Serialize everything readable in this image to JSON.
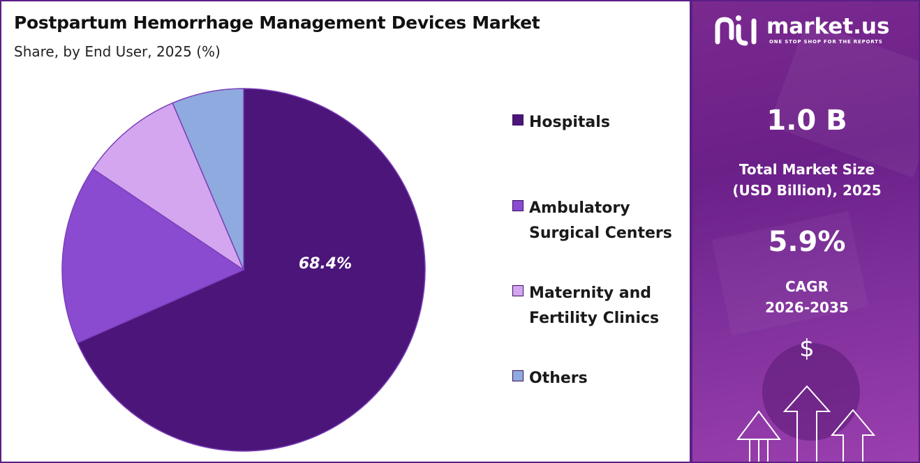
{
  "header": {
    "title": "Postpartum Hemorrhage Management Devices Market",
    "subtitle": "Share, by End User, 2025 (%)"
  },
  "chart_data": {
    "type": "pie",
    "title": "Postpartum Hemorrhage Management Devices Market",
    "subtitle": "Share, by End User, 2025 (%)",
    "legend_position": "right",
    "slices": [
      {
        "name": "Hospitals",
        "value": 68.4,
        "color": "#4b157a",
        "label": "68.4%"
      },
      {
        "name": "Ambulatory Surgical Centers",
        "value": 16.0,
        "color": "#8a4bd1",
        "label": ""
      },
      {
        "name": "Maternity and Fertility Clinics",
        "value": 9.2,
        "color": "#d3a6ef",
        "label": ""
      },
      {
        "name": "Others",
        "value": 6.4,
        "color": "#8faadf",
        "label": ""
      }
    ]
  },
  "legend": [
    {
      "label": "Hospitals",
      "color": "#4b157a"
    },
    {
      "label": "Ambulatory\nSurgical Centers",
      "color": "#8a4bd1"
    },
    {
      "label": "Maternity and\nFertility Clinics",
      "color": "#d3a6ef"
    },
    {
      "label": "Others",
      "color": "#8faadf"
    }
  ],
  "panel": {
    "logo_text": "market.us",
    "logo_tagline": "ONE STOP SHOP FOR THE REPORTS",
    "market_size_value": "1.0 B",
    "market_size_label": "Total Market Size\n(USD Billion), 2025",
    "cagr_value": "5.9%",
    "cagr_label": "CAGR\n2026-2035",
    "currency_symbol": "$"
  }
}
